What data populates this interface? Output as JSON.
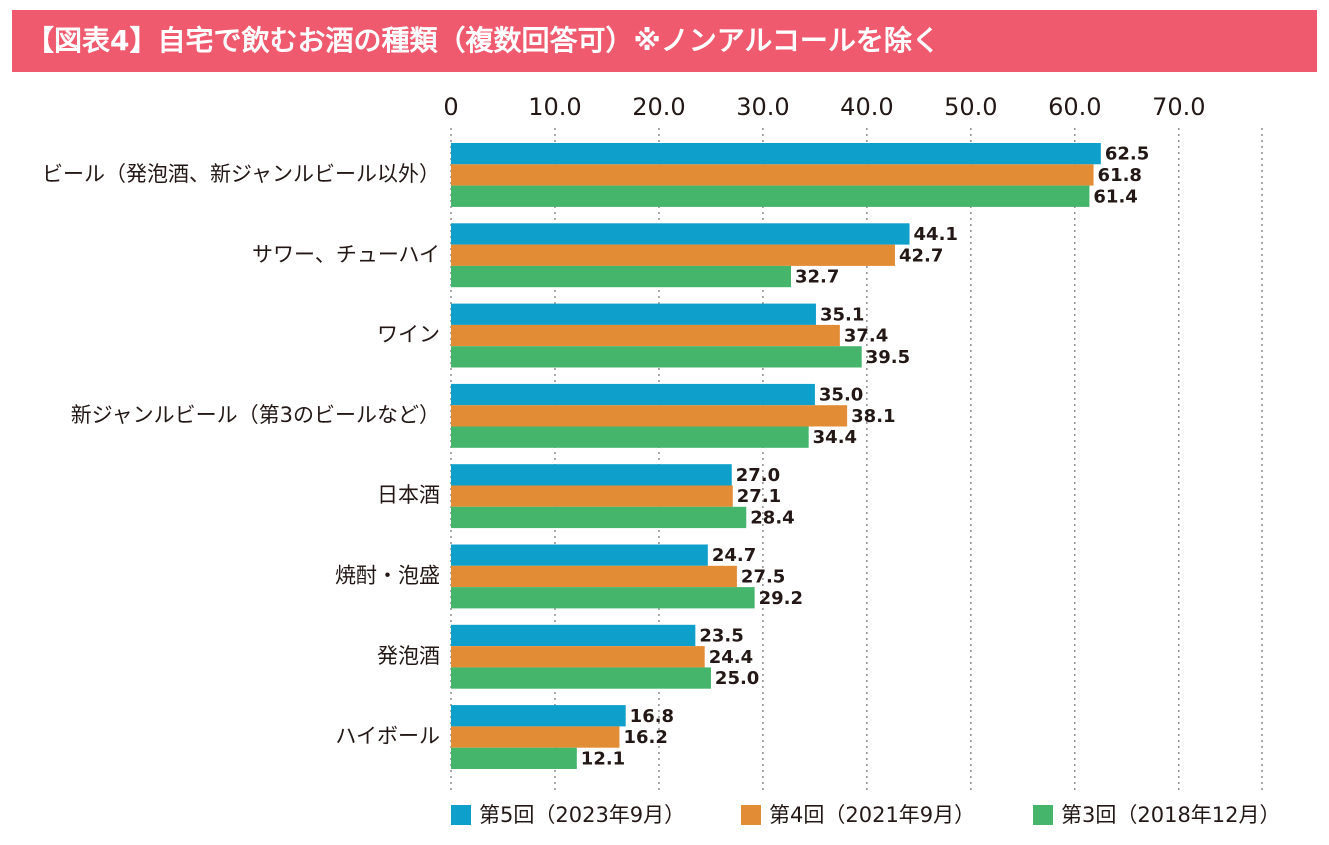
{
  "chart_data": {
    "type": "hbar",
    "title": "【図表4】自宅で飲むお酒の種類（複数回答可）※ノンアルコールを除く",
    "categories": [
      "ビール（発泡酒、新ジャンルビール以外）",
      "サワー、チューハイ",
      "ワイン",
      "新ジャンルビール（第3のビールなど）",
      "日本酒",
      "焼酎・泡盛",
      "発泡酒",
      "ハイボール"
    ],
    "series": [
      {
        "name": "第5回（2023年9月）",
        "color": "#0e9fcb",
        "values": [
          62.5,
          44.1,
          35.1,
          35.0,
          27.0,
          24.7,
          23.5,
          16.8
        ],
        "value_labels": [
          "62.5",
          "44.1",
          "35.1",
          "35.0",
          "27.0",
          "24.7",
          "23.5",
          "16.8"
        ]
      },
      {
        "name": "第4回（2021年9月）",
        "color": "#e38c36",
        "values": [
          61.8,
          42.7,
          37.4,
          38.1,
          27.1,
          27.5,
          24.4,
          16.2
        ],
        "value_labels": [
          "61.8",
          "42.7",
          "37.4",
          "38.1",
          "27.1",
          "27.5",
          "24.4",
          "16.2"
        ]
      },
      {
        "name": "第3回（2018年12月）",
        "color": "#45b56c",
        "values": [
          61.4,
          32.7,
          39.5,
          34.4,
          28.4,
          29.2,
          25.0,
          12.1
        ],
        "value_labels": [
          "61.4",
          "32.7",
          "39.5",
          "34.4",
          "28.4",
          "29.2",
          "25.0",
          "12.1"
        ]
      }
    ],
    "xlim": [
      0,
      78
    ],
    "xticks": [
      0,
      {
        "value": 10,
        "label": "10.0"
      },
      {
        "value": 20,
        "label": "20.0"
      },
      {
        "value": 30,
        "label": "30.0"
      },
      {
        "value": 40,
        "label": "40.0"
      },
      {
        "value": 50,
        "label": "50.0"
      },
      {
        "value": 60,
        "label": "60.0"
      },
      {
        "value": 70,
        "label": "70.0"
      }
    ],
    "grid": true
  }
}
